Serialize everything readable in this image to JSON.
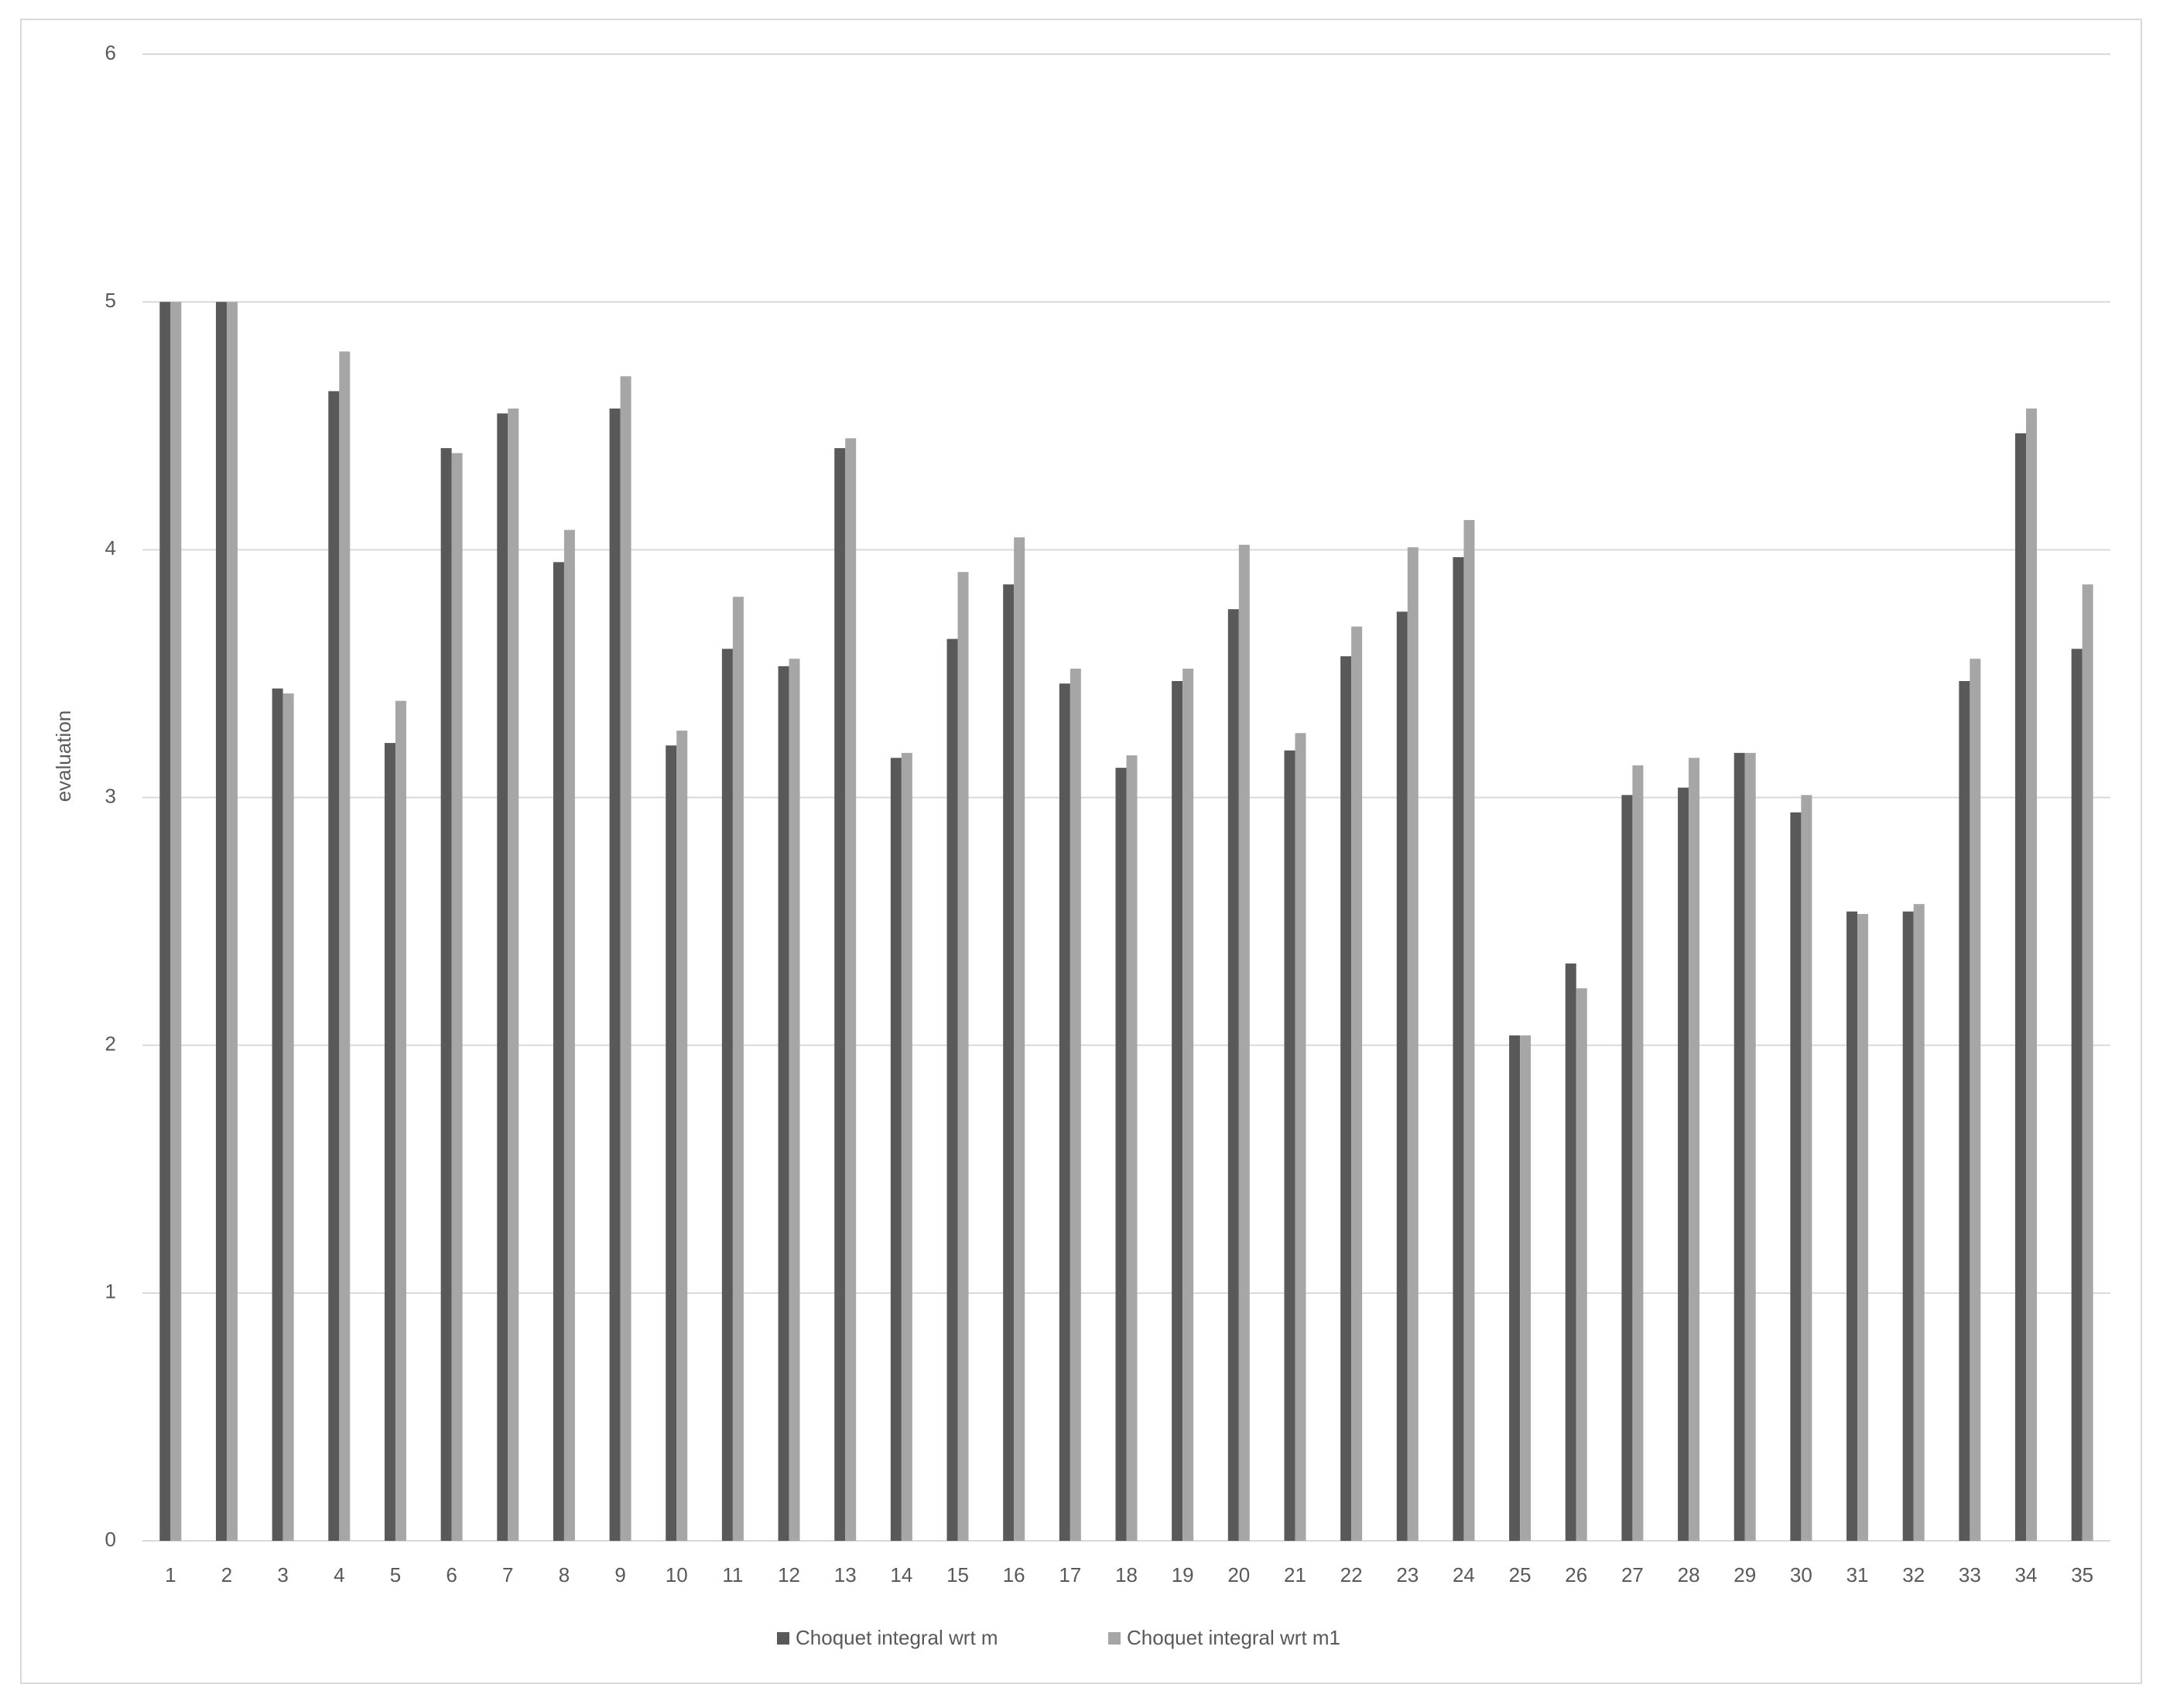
{
  "chart_data": {
    "type": "bar",
    "y_label": "evaluation",
    "categories": [
      1,
      2,
      3,
      4,
      5,
      6,
      7,
      8,
      9,
      10,
      11,
      12,
      13,
      14,
      15,
      16,
      17,
      18,
      19,
      20,
      21,
      22,
      23,
      24,
      25,
      26,
      27,
      28,
      29,
      30,
      31,
      32,
      33,
      34,
      35
    ],
    "series": [
      {
        "name": "Choquet integral wrt m",
        "color": "#595959",
        "values": [
          5,
          5,
          3.44,
          4.64,
          3.22,
          4.41,
          4.55,
          3.95,
          4.57,
          3.21,
          3.6,
          3.53,
          4.41,
          3.16,
          3.64,
          3.86,
          3.46,
          3.12,
          3.47,
          3.76,
          3.19,
          3.57,
          3.75,
          3.97,
          2.04,
          2.33,
          3.01,
          3.04,
          3.18,
          2.94,
          2.54,
          2.54,
          3.47,
          4.47,
          3.6
        ]
      },
      {
        "name": "Choquet integral wrt m1",
        "color": "#a6a6a6",
        "values": [
          5,
          5,
          3.42,
          4.8,
          3.39,
          4.39,
          4.57,
          4.08,
          4.7,
          3.27,
          3.81,
          3.56,
          4.45,
          3.18,
          3.91,
          4.05,
          3.52,
          3.17,
          3.52,
          4.02,
          3.26,
          3.69,
          4.01,
          4.12,
          2.04,
          2.23,
          3.13,
          3.16,
          3.18,
          3.01,
          2.53,
          2.57,
          3.56,
          4.57,
          3.86
        ]
      }
    ],
    "ylim": [
      0,
      6
    ],
    "yticks": [
      0,
      1,
      2,
      3,
      4,
      5,
      6
    ],
    "grid": true,
    "legend": "bottom"
  }
}
